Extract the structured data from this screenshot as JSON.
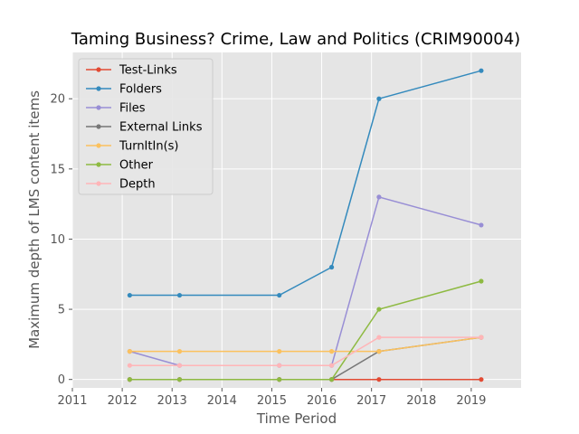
{
  "chart_data": {
    "type": "line",
    "title": "Taming Business? Crime, Law and Politics (CRIM90004)",
    "xlabel": "Time Period",
    "ylabel": "Maximum depth of LMS content items",
    "xlim": [
      2011.0,
      2020.0
    ],
    "ylim": [
      -0.6,
      23.3
    ],
    "xticks": [
      2011,
      2012,
      2013,
      2014,
      2015,
      2016,
      2017,
      2018,
      2019
    ],
    "yticks": [
      0,
      5,
      10,
      15,
      20
    ],
    "x": [
      2012.15,
      2013.15,
      2015.15,
      2016.2,
      2017.15,
      2019.2
    ],
    "legend_position": "top-left",
    "grid": true,
    "series": [
      {
        "name": "Test-Links",
        "color": "#e24a33",
        "values": [
          0,
          0,
          0,
          0,
          0,
          0
        ]
      },
      {
        "name": "Folders",
        "color": "#348abd",
        "values": [
          6,
          6,
          6,
          8,
          20,
          22
        ]
      },
      {
        "name": "Files",
        "color": "#988ed5",
        "values": [
          2,
          1,
          1,
          1,
          13,
          11
        ]
      },
      {
        "name": "External Links",
        "color": "#777777",
        "values": [
          0,
          0,
          0,
          0,
          2,
          3
        ]
      },
      {
        "name": "TurnItIn(s)",
        "color": "#fbc15e",
        "values": [
          2,
          2,
          2,
          2,
          2,
          3
        ]
      },
      {
        "name": "Other",
        "color": "#8eba42",
        "values": [
          0,
          0,
          0,
          0,
          5,
          7
        ]
      },
      {
        "name": "Depth",
        "color": "#ffb5b8",
        "values": [
          1,
          1,
          1,
          1,
          3,
          3
        ]
      }
    ]
  }
}
